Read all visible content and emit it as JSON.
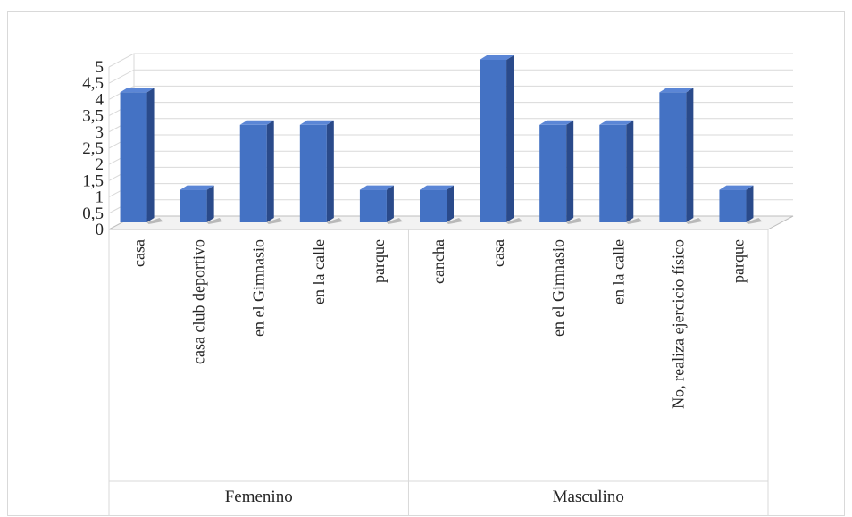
{
  "chart_data": {
    "type": "bar",
    "style": "3d-column",
    "groups": [
      {
        "name": "Femenino",
        "categories": [
          "casa",
          "casa club deportivo",
          "en el Gimnasio",
          "en la calle",
          "parque"
        ],
        "values": [
          4,
          1,
          3,
          3,
          1
        ]
      },
      {
        "name": "Masculino",
        "categories": [
          "cancha",
          "casa",
          "en el Gimnasio",
          "en la calle",
          "No, realiza ejercicio físico",
          "parque"
        ],
        "values": [
          1,
          5,
          3,
          3,
          4,
          1
        ]
      }
    ],
    "y_ticks": [
      "0",
      "0,5",
      "1",
      "1,5",
      "2",
      "2,5",
      "3",
      "3,5",
      "4",
      "4,5",
      "5"
    ],
    "ylim": [
      0,
      5
    ],
    "grid": true,
    "legend": "none",
    "colors": {
      "bar_front": "#4472c4",
      "bar_side": "#2a4a8a",
      "bar_top": "#5b86d6",
      "grid": "#d9d9d9",
      "floor": "#bfbfbf"
    }
  }
}
